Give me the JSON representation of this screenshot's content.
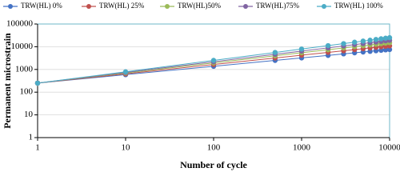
{
  "chart_data": {
    "type": "line",
    "x_label": "Number of cycle",
    "y_label": "Permanent microstrain",
    "xscale": "log",
    "yscale": "log",
    "xlim": [
      1,
      10000
    ],
    "xticks": [
      1,
      10,
      100,
      1000,
      10000
    ],
    "ylim": [
      1,
      100000
    ],
    "yticks": [
      1,
      10,
      100,
      1000,
      10000,
      100000
    ],
    "grid": true,
    "legend": "top",
    "x": [
      1,
      10,
      100,
      500,
      1000,
      2000,
      3000,
      4000,
      5000,
      6000,
      7000,
      8000,
      9000,
      10000
    ],
    "series": [
      {
        "name": "TRW(HL) 0%",
        "color": "#4472c4",
        "values": [
          250,
          590,
          1370,
          2490,
          3220,
          4150,
          4850,
          5380,
          5850,
          6260,
          6630,
          6970,
          7280,
          7550
        ]
      },
      {
        "name": "TRW(HL) 25%",
        "color": "#c0504d",
        "values": [
          250,
          640,
          1650,
          3200,
          4250,
          5640,
          6630,
          7480,
          8200,
          8840,
          9430,
          9980,
          10480,
          10930
        ]
      },
      {
        "name": "TRW(HL)50%",
        "color": "#9bbb59",
        "values": [
          250,
          700,
          1940,
          3980,
          5440,
          7400,
          8830,
          10060,
          11080,
          12020,
          12870,
          13660,
          14380,
          15070
        ]
      },
      {
        "name": "TRW(HL)75%",
        "color": "#8064a2",
        "values": [
          250,
          740,
          2180,
          4660,
          6430,
          8920,
          10780,
          12380,
          13760,
          15010,
          16160,
          17230,
          18240,
          19150
        ]
      },
      {
        "name": "TRW(HL) 100%",
        "color": "#4bacc6",
        "values": [
          250,
          790,
          2500,
          5590,
          7910,
          11180,
          13690,
          15810,
          17680,
          19360,
          20920,
          22360,
          23720,
          25000
        ]
      }
    ]
  }
}
